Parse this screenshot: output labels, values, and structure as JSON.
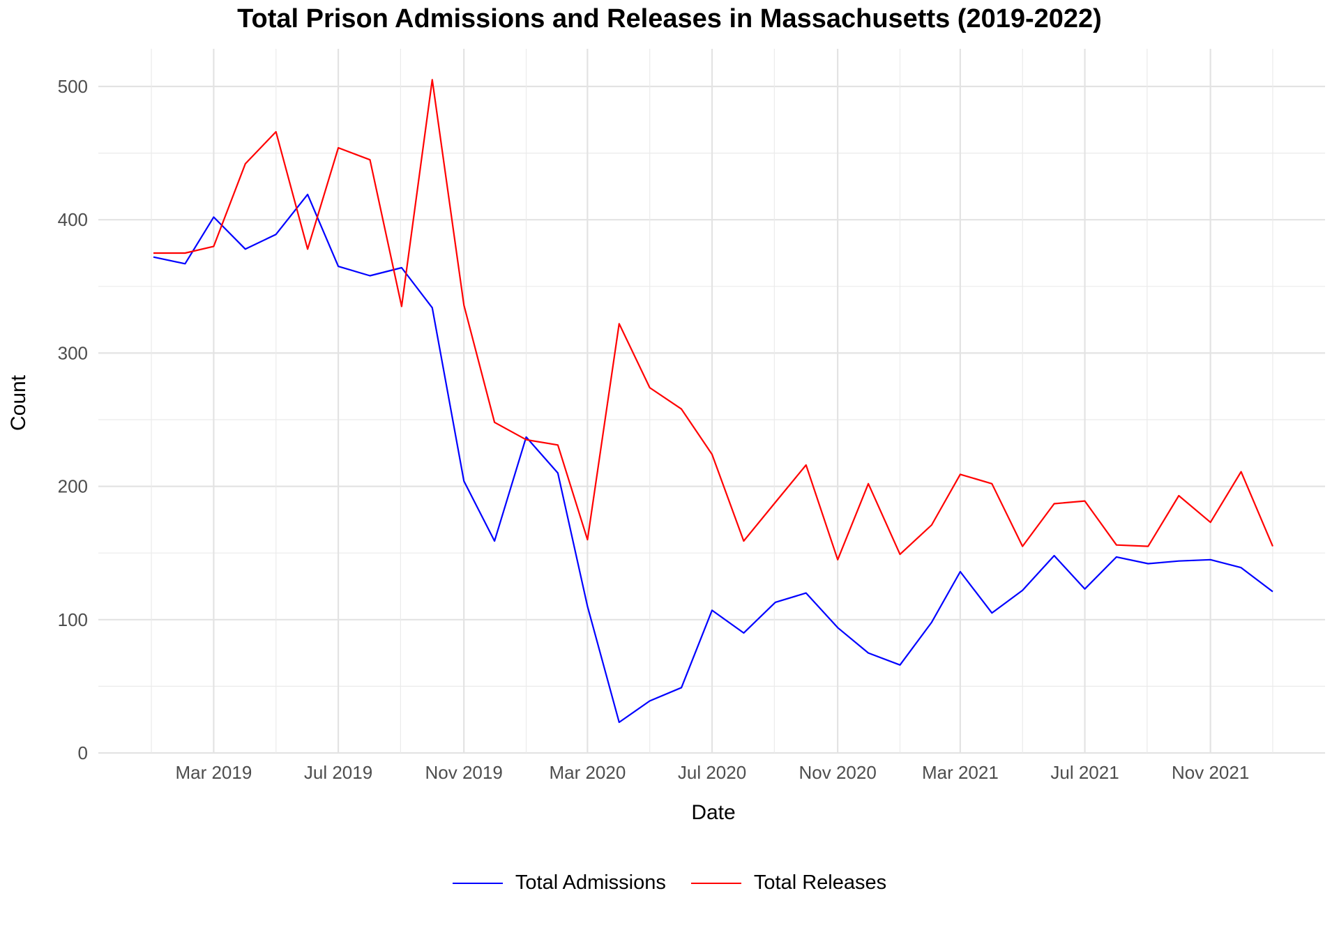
{
  "chart_data": {
    "type": "line",
    "title": "Total Prison Admissions and Releases in Massachusetts (2019-2022)",
    "xlabel": "Date",
    "ylabel": "Count",
    "ylim": [
      0,
      525
    ],
    "yticks": [
      0,
      100,
      200,
      300,
      400,
      500
    ],
    "xticks": [
      {
        "date": "2019-03-01",
        "label": "Mar 2019"
      },
      {
        "date": "2019-07-01",
        "label": "Jul 2019"
      },
      {
        "date": "2019-11-01",
        "label": "Nov 2019"
      },
      {
        "date": "2020-03-01",
        "label": "Mar 2020"
      },
      {
        "date": "2020-07-01",
        "label": "Jul 2020"
      },
      {
        "date": "2020-11-01",
        "label": "Nov 2020"
      },
      {
        "date": "2021-03-01",
        "label": "Mar 2021"
      },
      {
        "date": "2021-07-01",
        "label": "Jul 2021"
      },
      {
        "date": "2021-11-01",
        "label": "Nov 2021"
      }
    ],
    "grid": true,
    "legend_position": "bottom",
    "x": [
      "2019-01-01",
      "2019-02-01",
      "2019-03-01",
      "2019-04-01",
      "2019-05-01",
      "2019-06-01",
      "2019-07-01",
      "2019-08-01",
      "2019-09-01",
      "2019-10-01",
      "2019-11-01",
      "2019-12-01",
      "2020-01-01",
      "2020-02-01",
      "2020-03-01",
      "2020-04-01",
      "2020-05-01",
      "2020-06-01",
      "2020-07-01",
      "2020-08-01",
      "2020-09-01",
      "2020-10-01",
      "2020-11-01",
      "2020-12-01",
      "2021-01-01",
      "2021-02-01",
      "2021-03-01",
      "2021-04-01",
      "2021-05-01",
      "2021-06-01",
      "2021-07-01",
      "2021-08-01",
      "2021-09-01",
      "2021-10-01",
      "2021-11-01",
      "2021-12-01",
      "2022-01-01"
    ],
    "series": [
      {
        "name": "Total Admissions",
        "color": "#0000ff",
        "values": [
          372,
          367,
          402,
          378,
          389,
          419,
          365,
          358,
          364,
          334,
          204,
          159,
          237,
          210,
          110,
          23,
          39,
          49,
          107,
          90,
          113,
          120,
          94,
          75,
          66,
          98,
          136,
          105,
          122,
          148,
          123,
          147,
          142,
          144,
          145,
          139,
          121
        ]
      },
      {
        "name": "Total Releases",
        "color": "#ff0000",
        "values": [
          375,
          375,
          380,
          442,
          466,
          378,
          454,
          445,
          335,
          505,
          336,
          248,
          235,
          231,
          160,
          322,
          274,
          258,
          224,
          159,
          188,
          216,
          145,
          202,
          149,
          171,
          209,
          202,
          155,
          187,
          189,
          156,
          155,
          193,
          173,
          211,
          155
        ]
      }
    ]
  }
}
